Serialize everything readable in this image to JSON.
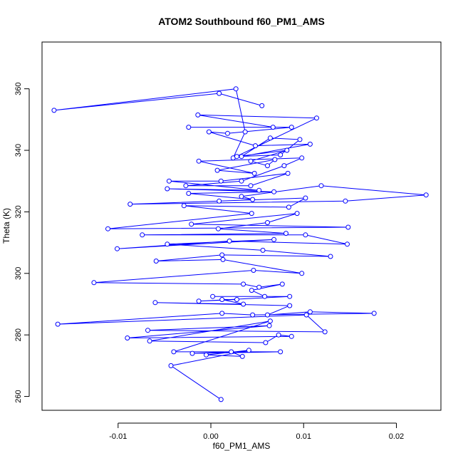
{
  "chart_data": {
    "type": "line",
    "title": "ATOM2 Southbound f60_PM1_AMS",
    "xlabel": "f60_PM1_AMS",
    "ylabel": "Theta (K)",
    "xlim": [
      -0.0182,
      0.0248
    ],
    "ylim": [
      255.5,
      375.2
    ],
    "x_ticks": [
      -0.01,
      0.0,
      0.01,
      0.02
    ],
    "x_tick_labels": [
      "-0.01",
      "0.00",
      "0.01",
      "0.02"
    ],
    "y_ticks": [
      260,
      280,
      300,
      320,
      340,
      360
    ],
    "y_tick_labels": [
      "260",
      "280",
      "300",
      "320",
      "340",
      "360"
    ],
    "grid": false,
    "legend": "none",
    "series_color": "#0000ff",
    "marker": "open-circle",
    "series": [
      {
        "x": [
          0.0055,
          0.0009,
          -0.0169,
          0.0027,
          0.0037,
          0.0024,
          0.0114,
          -0.0014,
          0.0067,
          -0.0024,
          0.0087,
          0.0018,
          -0.0002,
          0.0048,
          0.0107,
          0.0033,
          0.0064,
          0.0096,
          0.0075,
          0.0028,
          0.0082,
          0.0043,
          0.0061,
          0.0069,
          0.0007,
          0.0047,
          -0.0013,
          0.0098,
          0.0079,
          0.0033,
          -0.0027,
          0.0043,
          0.0083,
          0.0011,
          -0.0045,
          0.0052,
          -0.0047,
          0.0068,
          -0.0024,
          0.0045,
          0.0033,
          0.0119,
          0.0232,
          0.0145,
          -0.0087,
          0.0009,
          0.0102,
          0.0084,
          -0.0029,
          0.0044,
          -0.0111,
          0.0148,
          -0.0021,
          0.0093,
          0.0061,
          0.0008,
          0.0081,
          -0.0074,
          0.0102,
          0.0147,
          0.002,
          -0.0101,
          0.0068,
          -0.0047,
          0.0056,
          0.0129,
          0.0012,
          -0.0059,
          0.0013,
          0.0098,
          0.0046,
          -0.0126,
          0.0035,
          0.0052,
          0.0077,
          0.0044,
          0.0058,
          0.0002,
          0.0085,
          -0.0013,
          0.0028,
          0.0012,
          0.0035,
          -0.006,
          0.0085,
          0.0061,
          0.0107,
          0.0176,
          0.0045,
          0.0012,
          -0.0165,
          0.0103,
          0.0123,
          -0.0068,
          0.0063,
          -0.009,
          0.0087,
          0.0073,
          0.0059,
          -0.0066,
          0.0064,
          -0.004,
          0.0075,
          -0.002,
          0.0022,
          0.0034,
          -0.0005,
          0.0041,
          -0.0043,
          0.0011
        ],
        "y": [
          354.5,
          358.5,
          353.0,
          360.0,
          346.0,
          337.5,
          350.5,
          351.5,
          347.5,
          347.5,
          347.5,
          345.5,
          346.0,
          341.5,
          342.0,
          338.0,
          344.0,
          343.5,
          338.5,
          338.0,
          340.0,
          336.5,
          335.0,
          337.0,
          333.5,
          332.5,
          336.5,
          337.5,
          335.0,
          330.0,
          328.5,
          328.5,
          332.5,
          330.0,
          330.0,
          327.0,
          327.5,
          326.5,
          326.0,
          324.0,
          325.0,
          328.5,
          325.5,
          323.5,
          322.5,
          323.5,
          324.5,
          321.5,
          322.0,
          319.5,
          314.5,
          315.0,
          316.0,
          319.5,
          316.5,
          314.5,
          313.0,
          312.5,
          312.5,
          309.5,
          310.5,
          308.0,
          311.0,
          309.5,
          307.5,
          305.5,
          306.0,
          304.0,
          304.5,
          300.0,
          301.0,
          297.0,
          296.5,
          295.5,
          296.5,
          294.5,
          292.5,
          292.5,
          292.5,
          291.0,
          291.5,
          291.5,
          290.0,
          290.5,
          289.5,
          286.5,
          287.5,
          287.0,
          286.5,
          287.0,
          283.5,
          286.5,
          281.0,
          281.5,
          283.0,
          279.0,
          279.5,
          280.0,
          277.5,
          278.0,
          284.5,
          274.5,
          274.5,
          274.0,
          274.5,
          273.0,
          273.5,
          275.0,
          270.0,
          259.0
        ]
      }
    ]
  }
}
